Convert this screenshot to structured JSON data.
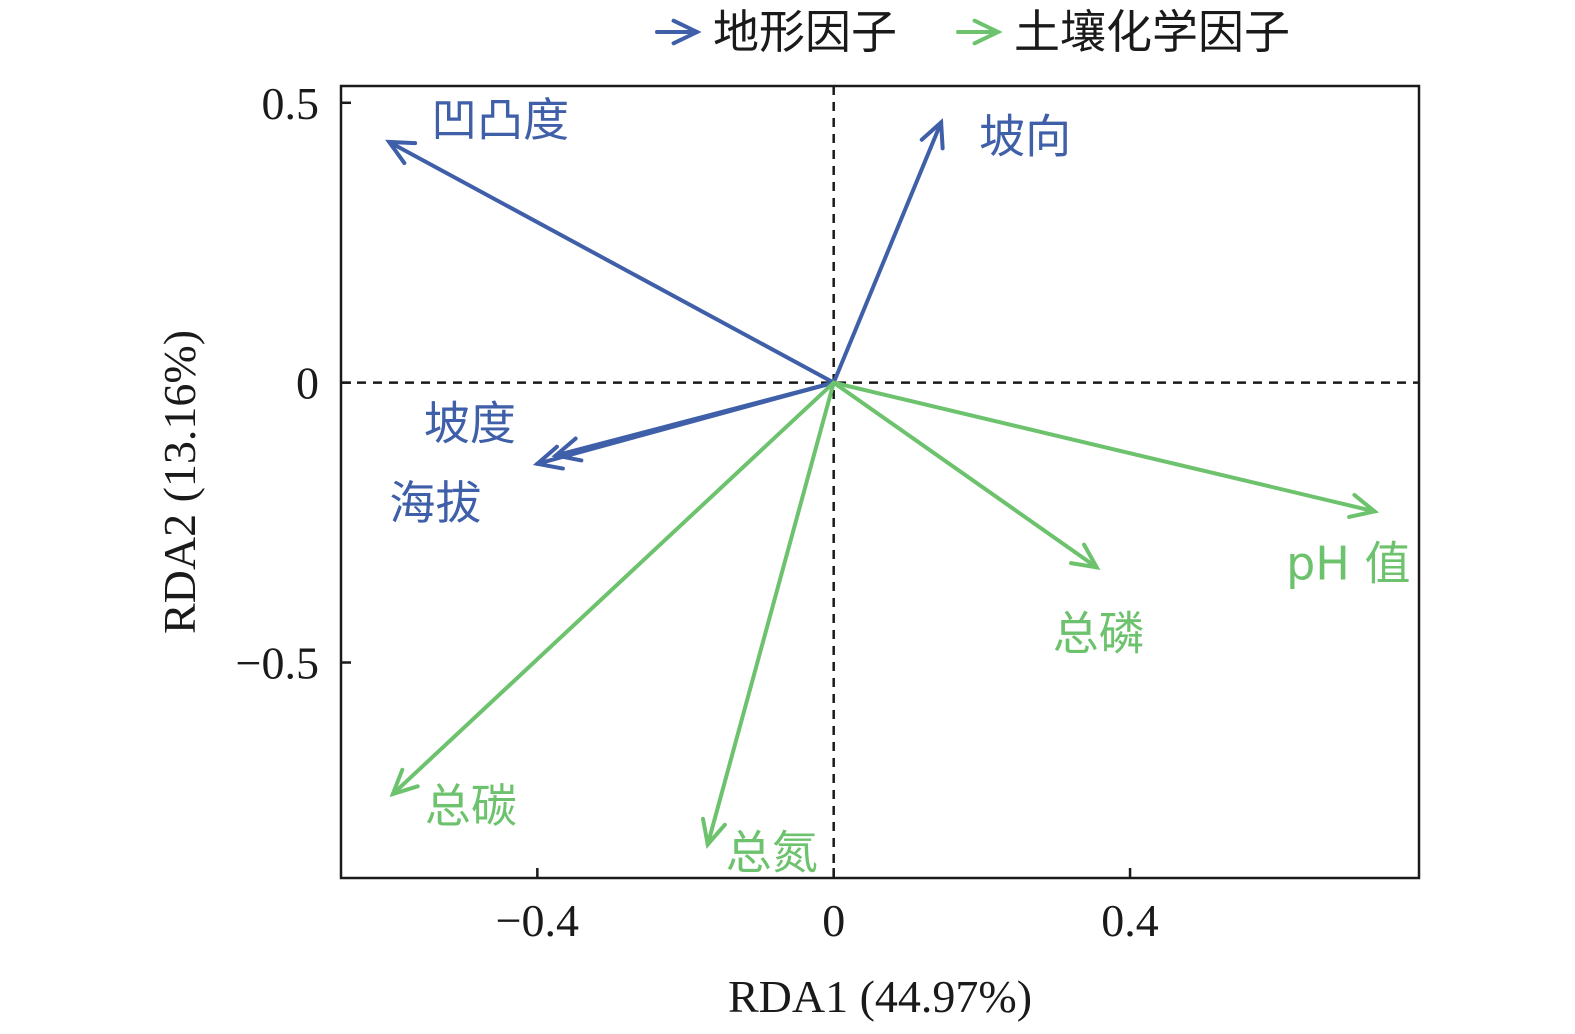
{
  "chart_data": {
    "type": "biplot",
    "xlabel": "RDA1 (44.97%)",
    "ylabel": "RDA2 (13.16%)",
    "xlim": [
      -0.665,
      0.79
    ],
    "ylim": [
      -0.885,
      0.53
    ],
    "xticks": [
      {
        "value": -0.4,
        "label": "−0.4"
      },
      {
        "value": 0,
        "label": "0"
      },
      {
        "value": 0.4,
        "label": "0.4"
      }
    ],
    "yticks": [
      {
        "value": 0.5,
        "label": "0.5"
      },
      {
        "value": 0,
        "label": "0"
      },
      {
        "value": -0.5,
        "label": "−0.5"
      }
    ],
    "grid": false,
    "reference_lines": "dashed at x=0 and y=0",
    "legend": {
      "placement": "top",
      "entries": [
        {
          "label": "地形因子",
          "color": "#3f5fa8"
        },
        {
          "label": "土壤化学因子",
          "color": "#6dc26d"
        }
      ]
    },
    "groups": [
      {
        "name": "地形因子",
        "color": "#3f5fa8",
        "vectors": [
          {
            "label": "凹凸度",
            "x": -0.6,
            "y": 0.43
          },
          {
            "label": "坡向",
            "x": 0.145,
            "y": 0.465
          },
          {
            "label": "坡度",
            "x": -0.375,
            "y": -0.13
          },
          {
            "label": "海拔",
            "x": -0.4,
            "y": -0.145
          }
        ]
      },
      {
        "name": "土壤化学因子",
        "color": "#6dc26d",
        "vectors": [
          {
            "label": "pH 值",
            "x": 0.73,
            "y": -0.23
          },
          {
            "label": "总磷",
            "x": 0.355,
            "y": -0.33
          },
          {
            "label": "总碳",
            "x": -0.595,
            "y": -0.735
          },
          {
            "label": "总氮",
            "x": -0.17,
            "y": -0.825
          }
        ]
      }
    ]
  }
}
